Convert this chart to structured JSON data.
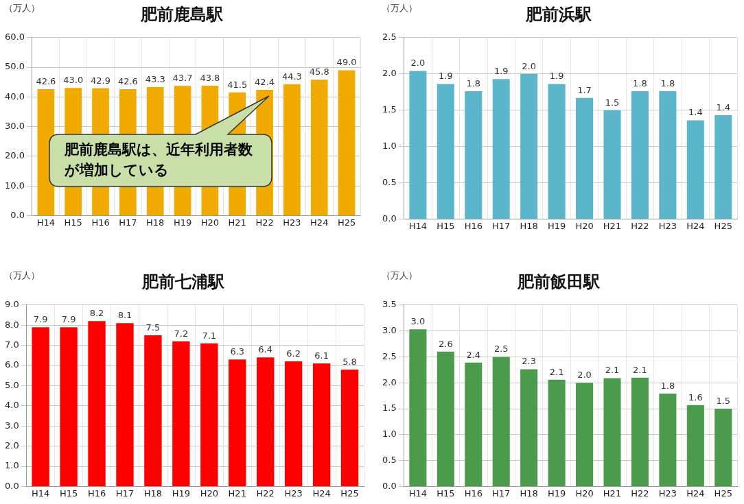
{
  "chart_data": [
    {
      "type": "bar",
      "title": "肥前鹿島駅",
      "ylabel": "（万人）",
      "categories": [
        "H14",
        "H15",
        "H16",
        "H17",
        "H18",
        "H19",
        "H20",
        "H21",
        "H22",
        "H23",
        "H24",
        "H25"
      ],
      "values": [
        42.6,
        43.0,
        42.9,
        42.6,
        43.3,
        43.7,
        43.8,
        41.5,
        42.4,
        44.3,
        45.8,
        49.0
      ],
      "value_labels": [
        "42.6",
        "43.0",
        "42.9",
        "42.6",
        "43.3",
        "43.7",
        "43.8",
        "41.5",
        "42.4",
        "44.3",
        "45.8",
        "49.0"
      ],
      "color": "#f0aa00",
      "ylim": [
        0,
        60
      ],
      "yticks": [
        {
          "value": 0,
          "label": "0.0"
        },
        {
          "value": 10,
          "label": "10.0"
        },
        {
          "value": 20,
          "label": "20.0"
        },
        {
          "value": 30,
          "label": "30.0"
        },
        {
          "value": 40,
          "label": "40.0"
        },
        {
          "value": 50,
          "label": "50.0"
        },
        {
          "value": 60,
          "label": "60.0"
        }
      ],
      "grid": true,
      "legend": false,
      "annotations": [
        "肥前鹿島駅は、近年利用者数が増加している"
      ]
    },
    {
      "type": "bar",
      "title": "肥前浜駅",
      "ylabel": "（万人）",
      "categories": [
        "H14",
        "H15",
        "H16",
        "H17",
        "H18",
        "H19",
        "H20",
        "H21",
        "H22",
        "H23",
        "H24",
        "H25"
      ],
      "values": [
        2.04,
        1.86,
        1.76,
        1.93,
        2.0,
        1.86,
        1.67,
        1.5,
        1.76,
        1.76,
        1.36,
        1.43
      ],
      "value_labels": [
        "2.0",
        "1.9",
        "1.8",
        "1.9",
        "2.0",
        "1.9",
        "1.7",
        "1.5",
        "1.8",
        "1.8",
        "1.4",
        "1.4"
      ],
      "color": "#5bb6cc",
      "ylim": [
        0,
        2.5
      ],
      "yticks": [
        {
          "value": 0,
          "label": "0.0"
        },
        {
          "value": 0.5,
          "label": "0.5"
        },
        {
          "value": 1,
          "label": "1.0"
        },
        {
          "value": 1.5,
          "label": "1.5"
        },
        {
          "value": 2,
          "label": "2.0"
        },
        {
          "value": 2.5,
          "label": "2.5"
        }
      ],
      "grid": true,
      "legend": false
    },
    {
      "type": "bar",
      "title": "肥前七浦駅",
      "ylabel": "（万人）",
      "categories": [
        "H14",
        "H15",
        "H16",
        "H17",
        "H18",
        "H19",
        "H20",
        "H21",
        "H22",
        "H23",
        "H24",
        "H25"
      ],
      "values": [
        7.9,
        7.9,
        8.2,
        8.1,
        7.5,
        7.2,
        7.1,
        6.3,
        6.4,
        6.2,
        6.1,
        5.8
      ],
      "value_labels": [
        "7.9",
        "7.9",
        "8.2",
        "8.1",
        "7.5",
        "7.2",
        "7.1",
        "6.3",
        "6.4",
        "6.2",
        "6.1",
        "5.8"
      ],
      "color": "#ff0000",
      "ylim": [
        0,
        9
      ],
      "yticks": [
        {
          "value": 0,
          "label": "0.0"
        },
        {
          "value": 1,
          "label": "1.0"
        },
        {
          "value": 2,
          "label": "2.0"
        },
        {
          "value": 3,
          "label": "3.0"
        },
        {
          "value": 4,
          "label": "4.0"
        },
        {
          "value": 5,
          "label": "5.0"
        },
        {
          "value": 6,
          "label": "6.0"
        },
        {
          "value": 7,
          "label": "7.0"
        },
        {
          "value": 8,
          "label": "8.0"
        },
        {
          "value": 9,
          "label": "9.0"
        }
      ],
      "grid": true,
      "legend": false
    },
    {
      "type": "bar",
      "title": "肥前飯田駅",
      "ylabel": "（万人）",
      "categories": [
        "H14",
        "H15",
        "H16",
        "H17",
        "H18",
        "H19",
        "H20",
        "H21",
        "H22",
        "H23",
        "H24",
        "H25"
      ],
      "values": [
        3.03,
        2.6,
        2.39,
        2.5,
        2.26,
        2.06,
        2.0,
        2.09,
        2.1,
        1.79,
        1.57,
        1.5
      ],
      "value_labels": [
        "3.0",
        "2.6",
        "2.4",
        "2.5",
        "2.3",
        "2.1",
        "2.0",
        "2.1",
        "2.1",
        "1.8",
        "1.6",
        "1.5"
      ],
      "color": "#4c9a4c",
      "ylim": [
        0,
        3.5
      ],
      "yticks": [
        {
          "value": 0,
          "label": "0.0"
        },
        {
          "value": 0.5,
          "label": "0.5"
        },
        {
          "value": 1,
          "label": "1.0"
        },
        {
          "value": 1.5,
          "label": "1.5"
        },
        {
          "value": 2,
          "label": "2.0"
        },
        {
          "value": 2.5,
          "label": "2.5"
        },
        {
          "value": 3,
          "label": "3.0"
        },
        {
          "value": 3.5,
          "label": "3.5"
        }
      ],
      "grid": true,
      "legend": false
    }
  ]
}
